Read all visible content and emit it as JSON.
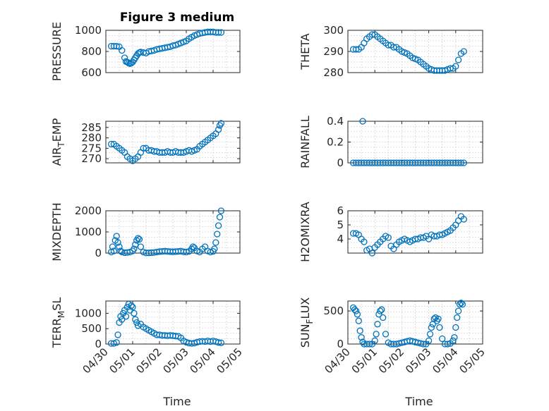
{
  "figure": {
    "title": "Figure 3 medium",
    "xlabel": "Time",
    "x_range": [
      "04/30",
      "05/05"
    ],
    "x_ticks": [
      "04/30",
      "05/01",
      "05/02",
      "05/03",
      "05/04",
      "05/05"
    ],
    "marker": "circle",
    "marker_color": "#0072BD",
    "grid": "minor-dotted"
  },
  "chart_data": [
    {
      "type": "scatter",
      "ylabel": "PRESSURE",
      "ylabel_sub": "",
      "ylabel_tail": "",
      "ylim": [
        600,
        1000
      ],
      "yticks": [
        "600",
        "800",
        "1000"
      ],
      "x": [
        0.2,
        0.3,
        0.4,
        0.5,
        0.6,
        0.7,
        0.75,
        0.8,
        0.85,
        0.9,
        0.95,
        1.0,
        1.05,
        1.1,
        1.15,
        1.2,
        1.25,
        1.3,
        1.4,
        1.5,
        1.6,
        1.7,
        1.8,
        1.9,
        2.0,
        2.1,
        2.2,
        2.3,
        2.4,
        2.5,
        2.6,
        2.7,
        2.8,
        2.9,
        3.0,
        3.1,
        3.2,
        3.3,
        3.4,
        3.5,
        3.6,
        3.7,
        3.8,
        3.9,
        4.0,
        4.1,
        4.2,
        4.3
      ],
      "y": [
        850,
        850,
        850,
        845,
        810,
        740,
        705,
        700,
        690,
        685,
        690,
        700,
        720,
        740,
        760,
        780,
        790,
        795,
        790,
        785,
        800,
        805,
        810,
        820,
        825,
        830,
        835,
        840,
        845,
        855,
        860,
        870,
        880,
        890,
        900,
        920,
        935,
        950,
        960,
        970,
        975,
        980,
        985,
        985,
        985,
        980,
        980,
        980
      ]
    },
    {
      "type": "scatter",
      "ylabel": "THETA",
      "ylabel_sub": "",
      "ylabel_tail": "",
      "ylim": [
        280,
        300
      ],
      "yticks": [
        "280",
        "290",
        "300"
      ],
      "x": [
        0.2,
        0.3,
        0.4,
        0.5,
        0.6,
        0.7,
        0.8,
        0.9,
        1.0,
        1.1,
        1.2,
        1.3,
        1.4,
        1.5,
        1.6,
        1.7,
        1.8,
        1.9,
        2.0,
        2.1,
        2.2,
        2.3,
        2.4,
        2.5,
        2.6,
        2.7,
        2.8,
        2.9,
        3.0,
        3.1,
        3.2,
        3.3,
        3.4,
        3.5,
        3.6,
        3.7,
        3.8,
        3.9,
        4.0,
        4.1,
        4.2,
        4.3
      ],
      "y": [
        291,
        291,
        291,
        292,
        294,
        296,
        297,
        298,
        298,
        297,
        296,
        295,
        294,
        293,
        293,
        292,
        292,
        291,
        290,
        289.5,
        289,
        288,
        287,
        286.5,
        286,
        285,
        284,
        283,
        282,
        281.5,
        281,
        281,
        281,
        281,
        281,
        281.5,
        282,
        282,
        283,
        286,
        289,
        290
      ]
    },
    {
      "type": "scatter",
      "ylabel": "AIR",
      "ylabel_sub": "T",
      "ylabel_tail": "EMP",
      "ylim": [
        268,
        288
      ],
      "yticks": [
        "270",
        "275",
        "280",
        "285"
      ],
      "x": [
        0.2,
        0.3,
        0.4,
        0.5,
        0.6,
        0.7,
        0.8,
        0.9,
        1.0,
        1.1,
        1.2,
        1.3,
        1.4,
        1.5,
        1.6,
        1.7,
        1.8,
        1.9,
        2.0,
        2.1,
        2.2,
        2.3,
        2.4,
        2.5,
        2.6,
        2.7,
        2.8,
        2.9,
        3.0,
        3.1,
        3.2,
        3.3,
        3.4,
        3.5,
        3.6,
        3.7,
        3.8,
        3.9,
        4.0,
        4.1,
        4.2,
        4.25,
        4.3
      ],
      "y": [
        277,
        277,
        276,
        275,
        274,
        273,
        271,
        270,
        269,
        270,
        271,
        273,
        275,
        275,
        274,
        274,
        273.5,
        273.5,
        273,
        273,
        273,
        273.5,
        273,
        273,
        273.5,
        273,
        273,
        273,
        273.5,
        274,
        273.5,
        274,
        274.5,
        276,
        277,
        278,
        279,
        280,
        281,
        282,
        284,
        286,
        287
      ]
    },
    {
      "type": "scatter",
      "ylabel": "RAINFALL",
      "ylabel_sub": "",
      "ylabel_tail": "",
      "ylim": [
        0,
        0.4
      ],
      "yticks": [
        "0",
        "0.2",
        "0.4"
      ],
      "x": [
        0.2,
        0.3,
        0.4,
        0.5,
        0.55,
        0.6,
        0.7,
        0.8,
        0.9,
        1.0,
        1.1,
        1.2,
        1.3,
        1.4,
        1.5,
        1.6,
        1.7,
        1.8,
        1.9,
        2.0,
        2.1,
        2.2,
        2.3,
        2.4,
        2.5,
        2.6,
        2.7,
        2.8,
        2.9,
        3.0,
        3.1,
        3.2,
        3.3,
        3.4,
        3.5,
        3.6,
        3.7,
        3.8,
        3.9,
        4.0,
        4.1,
        4.2,
        4.3
      ],
      "y": [
        0,
        0,
        0,
        0,
        0.4,
        0,
        0,
        0,
        0,
        0,
        0,
        0,
        0,
        0,
        0,
        0,
        0,
        0,
        0,
        0,
        0,
        0,
        0,
        0,
        0,
        0,
        0,
        0,
        0,
        0,
        0,
        0,
        0,
        0,
        0,
        0,
        0,
        0,
        0,
        0,
        0,
        0,
        0
      ]
    },
    {
      "type": "scatter",
      "ylabel": "MIXDEPTH",
      "ylabel_sub": "",
      "ylabel_tail": "",
      "ylim": [
        0,
        2000
      ],
      "yticks": [
        "0",
        "1000",
        "2000"
      ],
      "x": [
        0.2,
        0.25,
        0.3,
        0.35,
        0.4,
        0.45,
        0.5,
        0.55,
        0.6,
        0.7,
        0.8,
        0.9,
        1.0,
        1.05,
        1.1,
        1.15,
        1.2,
        1.25,
        1.3,
        1.4,
        1.5,
        1.6,
        1.7,
        1.8,
        1.9,
        2.0,
        2.1,
        2.2,
        2.3,
        2.4,
        2.5,
        2.6,
        2.7,
        2.8,
        2.9,
        3.0,
        3.1,
        3.2,
        3.25,
        3.3,
        3.4,
        3.5,
        3.6,
        3.7,
        3.8,
        3.9,
        4.0,
        4.05,
        4.1,
        4.15,
        4.2,
        4.25,
        4.3
      ],
      "y": [
        50,
        300,
        100,
        600,
        800,
        500,
        300,
        100,
        50,
        20,
        30,
        50,
        100,
        200,
        400,
        600,
        700,
        650,
        300,
        50,
        10,
        10,
        20,
        30,
        50,
        70,
        80,
        90,
        80,
        70,
        60,
        70,
        80,
        90,
        60,
        50,
        80,
        200,
        300,
        250,
        100,
        50,
        200,
        300,
        100,
        50,
        80,
        200,
        500,
        900,
        1300,
        1700,
        2000
      ]
    },
    {
      "type": "scatter",
      "ylabel": "H2OMIXRA",
      "ylabel_sub": "",
      "ylabel_tail": "",
      "ylim": [
        3,
        6
      ],
      "yticks": [
        "4",
        "5",
        "6"
      ],
      "x": [
        0.2,
        0.3,
        0.4,
        0.5,
        0.6,
        0.7,
        0.8,
        0.9,
        1.0,
        1.1,
        1.2,
        1.3,
        1.4,
        1.5,
        1.6,
        1.7,
        1.8,
        1.9,
        2.0,
        2.1,
        2.2,
        2.3,
        2.4,
        2.5,
        2.6,
        2.7,
        2.8,
        2.9,
        3.0,
        3.1,
        3.2,
        3.3,
        3.4,
        3.5,
        3.6,
        3.7,
        3.8,
        3.9,
        4.0,
        4.1,
        4.2,
        4.3
      ],
      "y": [
        4.4,
        4.4,
        4.3,
        4.0,
        3.8,
        3.2,
        3.3,
        3.0,
        3.4,
        3.6,
        3.8,
        4.0,
        4.2,
        4.1,
        3.5,
        3.3,
        3.6,
        3.8,
        3.9,
        4.0,
        3.9,
        3.8,
        3.9,
        4.0,
        4.0,
        4.1,
        4.1,
        4.2,
        4.0,
        4.3,
        4.2,
        4.2,
        4.3,
        4.3,
        4.4,
        4.5,
        4.6,
        4.8,
        5.0,
        5.3,
        5.6,
        5.4
      ]
    },
    {
      "type": "scatter",
      "ylabel": "TERR",
      "ylabel_sub": "M",
      "ylabel_tail": "SL",
      "ylim": [
        0,
        1400
      ],
      "yticks": [
        "0",
        "500",
        "1000"
      ],
      "x": [
        0.2,
        0.3,
        0.4,
        0.45,
        0.5,
        0.55,
        0.6,
        0.65,
        0.7,
        0.75,
        0.8,
        0.85,
        0.9,
        0.95,
        1.0,
        1.05,
        1.1,
        1.15,
        1.2,
        1.3,
        1.4,
        1.5,
        1.6,
        1.7,
        1.8,
        1.9,
        2.0,
        2.1,
        2.2,
        2.3,
        2.4,
        2.5,
        2.6,
        2.7,
        2.8,
        2.9,
        3.0,
        3.1,
        3.2,
        3.3,
        3.4,
        3.5,
        3.6,
        3.7,
        3.8,
        3.9,
        4.0,
        4.1,
        4.2,
        4.3
      ],
      "y": [
        20,
        20,
        50,
        300,
        700,
        900,
        800,
        1000,
        1100,
        900,
        1200,
        1300,
        1100,
        1250,
        1200,
        1000,
        800,
        700,
        600,
        650,
        550,
        500,
        450,
        400,
        350,
        300,
        300,
        280,
        280,
        270,
        280,
        270,
        260,
        250,
        200,
        100,
        60,
        30,
        20,
        30,
        60,
        80,
        90,
        80,
        100,
        80,
        100,
        80,
        50,
        40
      ]
    },
    {
      "type": "scatter",
      "ylabel": "SUN",
      "ylabel_sub": "F",
      "ylabel_tail": "LUX",
      "ylim": [
        0,
        650
      ],
      "yticks": [
        "0",
        "500"
      ],
      "x": [
        0.2,
        0.25,
        0.3,
        0.35,
        0.4,
        0.45,
        0.5,
        0.55,
        0.6,
        0.7,
        0.8,
        0.9,
        1.0,
        1.05,
        1.1,
        1.15,
        1.2,
        1.25,
        1.3,
        1.4,
        1.5,
        1.6,
        1.7,
        1.8,
        1.9,
        2.0,
        2.1,
        2.2,
        2.3,
        2.4,
        2.5,
        2.6,
        2.7,
        2.8,
        2.9,
        3.0,
        3.05,
        3.1,
        3.15,
        3.2,
        3.25,
        3.3,
        3.35,
        3.4,
        3.5,
        3.6,
        3.7,
        3.8,
        3.9,
        3.95,
        4.0,
        4.05,
        4.1,
        4.15,
        4.2,
        4.25
      ],
      "y": [
        550,
        520,
        500,
        450,
        350,
        200,
        100,
        30,
        0,
        0,
        0,
        0,
        50,
        150,
        300,
        450,
        500,
        520,
        400,
        150,
        20,
        0,
        0,
        0,
        10,
        20,
        30,
        40,
        50,
        40,
        30,
        20,
        10,
        0,
        0,
        50,
        150,
        250,
        300,
        380,
        400,
        350,
        380,
        250,
        80,
        0,
        0,
        10,
        50,
        100,
        250,
        400,
        500,
        600,
        620,
        600
      ]
    }
  ]
}
